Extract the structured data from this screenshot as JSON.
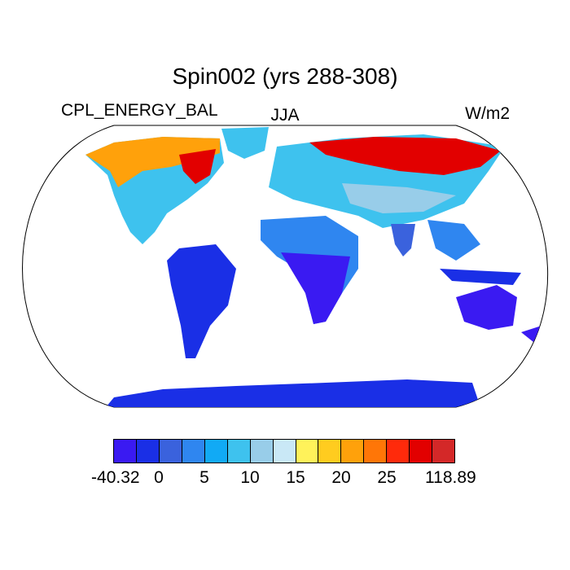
{
  "title": "Spin002 (yrs 288-308)",
  "left_label": "CPL_ENERGY_BAL",
  "center_label": "JJA",
  "right_label": "W/m2",
  "colorbar": {
    "colors": [
      "#3a1af2",
      "#1a2fe6",
      "#3a62dd",
      "#2f86f0",
      "#11aaf5",
      "#3ec2ee",
      "#98cde9",
      "#c9e8f6",
      "#fff25a",
      "#ffcc1f",
      "#ffa10b",
      "#ff7607",
      "#ff2a0b",
      "#e20000",
      "#d42828"
    ],
    "labels": [
      "-40.32",
      "0",
      "5",
      "10",
      "15",
      "20",
      "25",
      "118.89"
    ]
  },
  "map_legend_colors": {
    "ocean": "#ffffff",
    "low": "#3a1af2",
    "mid_low": "#2f86f0",
    "mid": "#98cde9",
    "mid_high": "#ffcc1f",
    "high": "#d42828"
  }
}
